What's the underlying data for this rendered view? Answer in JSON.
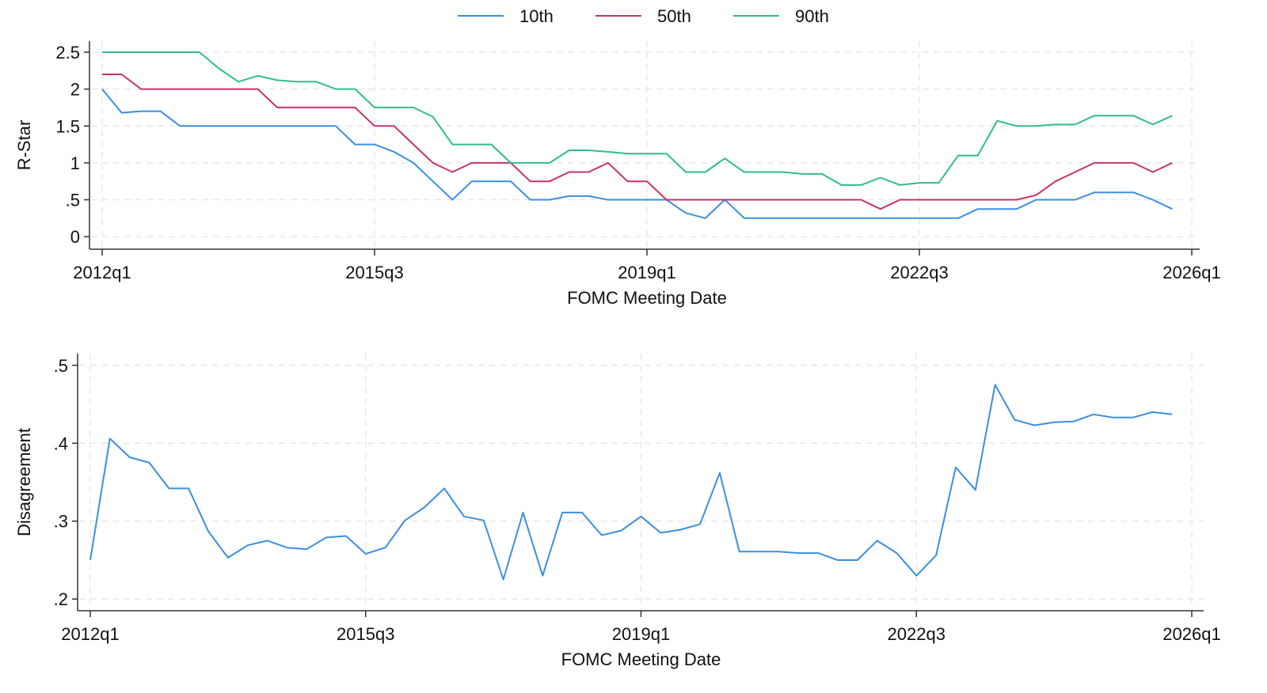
{
  "legend": [
    {
      "label": "10th",
      "color": "#3b8fe0"
    },
    {
      "label": "50th",
      "color": "#c8326a"
    },
    {
      "label": "90th",
      "color": "#2fbd8a"
    }
  ],
  "chart_data": [
    {
      "type": "line",
      "ylabel": "R-Star",
      "xlabel": "FOMC Meeting Date",
      "x_start": "2012q1",
      "x_frequency": "quarterly",
      "xticks": [
        "2012q1",
        "2015q3",
        "2019q1",
        "2022q3",
        "2026q1"
      ],
      "xlim": [
        "2012q1",
        "2026q1"
      ],
      "yticks": [
        0,
        0.5,
        1,
        1.5,
        2,
        2.5
      ],
      "ytick_labels": [
        "0",
        ".5",
        "1",
        "1.5",
        "2",
        "2.5"
      ],
      "ylim": [
        -0.17,
        2.65
      ],
      "grid": true,
      "legend_position": "top",
      "series": [
        {
          "name": "10th",
          "color": "#3b8fe0",
          "values": [
            2.0,
            1.68,
            1.7,
            1.7,
            1.5,
            1.5,
            1.5,
            1.5,
            1.5,
            1.5,
            1.5,
            1.5,
            1.5,
            1.25,
            1.25,
            1.15,
            1.0,
            0.75,
            0.5,
            0.75,
            0.75,
            0.75,
            0.5,
            0.5,
            0.55,
            0.55,
            0.5,
            0.5,
            0.5,
            0.5,
            0.32,
            0.25,
            0.5,
            0.25,
            0.25,
            0.25,
            0.25,
            0.25,
            0.25,
            0.25,
            0.25,
            0.25,
            0.25,
            0.25,
            0.25,
            0.375,
            0.375,
            0.375,
            0.5,
            0.5,
            0.5,
            0.6,
            0.6,
            0.6,
            0.5,
            0.375
          ]
        },
        {
          "name": "50th",
          "color": "#c8326a",
          "values": [
            2.2,
            2.2,
            2.0,
            2.0,
            2.0,
            2.0,
            2.0,
            2.0,
            2.0,
            1.75,
            1.75,
            1.75,
            1.75,
            1.75,
            1.5,
            1.5,
            1.25,
            1.0,
            0.875,
            1.0,
            1.0,
            1.0,
            0.75,
            0.75,
            0.875,
            0.875,
            1.0,
            0.75,
            0.75,
            0.5,
            0.5,
            0.5,
            0.5,
            0.5,
            0.5,
            0.5,
            0.5,
            0.5,
            0.5,
            0.5,
            0.375,
            0.5,
            0.5,
            0.5,
            0.5,
            0.5,
            0.5,
            0.5,
            0.5625,
            0.75,
            0.875,
            1.0,
            1.0,
            1.0,
            0.875,
            1.0
          ]
        },
        {
          "name": "90th",
          "color": "#2fbd8a",
          "values": [
            2.5,
            2.5,
            2.5,
            2.5,
            2.5,
            2.5,
            2.28,
            2.1,
            2.18,
            2.12,
            2.1,
            2.1,
            2.0,
            2.0,
            1.75,
            1.75,
            1.75,
            1.625,
            1.25,
            1.25,
            1.25,
            1.0,
            1.0,
            1.0,
            1.17,
            1.17,
            1.15,
            1.125,
            1.125,
            1.125,
            0.875,
            0.875,
            1.06,
            0.875,
            0.875,
            0.875,
            0.85,
            0.85,
            0.7,
            0.7,
            0.8,
            0.7,
            0.73,
            0.73,
            1.1,
            1.1,
            1.57,
            1.5,
            1.5,
            1.52,
            1.52,
            1.64,
            1.64,
            1.64,
            1.52,
            1.64
          ]
        }
      ]
    },
    {
      "type": "line",
      "ylabel": "Disagreement",
      "xlabel": "FOMC Meeting Date",
      "x_start": "2012q1",
      "x_frequency": "quarterly",
      "xticks": [
        "2012q1",
        "2015q3",
        "2019q1",
        "2022q3",
        "2026q1"
      ],
      "xlim": [
        "2012q1",
        "2026q1"
      ],
      "yticks": [
        0.2,
        0.3,
        0.4,
        0.5
      ],
      "ytick_labels": [
        ".2",
        ".3",
        ".4",
        ".5"
      ],
      "ylim": [
        0.185,
        0.515
      ],
      "grid": true,
      "series": [
        {
          "color": "#3b8fe0",
          "values": [
            0.25,
            0.406,
            0.382,
            0.375,
            0.342,
            0.342,
            0.287,
            0.253,
            0.269,
            0.275,
            0.266,
            0.264,
            0.279,
            0.281,
            0.258,
            0.266,
            0.301,
            0.318,
            0.342,
            0.306,
            0.301,
            0.225,
            0.311,
            0.23,
            0.311,
            0.311,
            0.282,
            0.288,
            0.306,
            0.285,
            0.289,
            0.296,
            0.362,
            0.261,
            0.261,
            0.261,
            0.259,
            0.259,
            0.25,
            0.25,
            0.275,
            0.259,
            0.23,
            0.256,
            0.369,
            0.34,
            0.475,
            0.43,
            0.423,
            0.427,
            0.428,
            0.437,
            0.433,
            0.433,
            0.44,
            0.437
          ]
        }
      ]
    }
  ]
}
